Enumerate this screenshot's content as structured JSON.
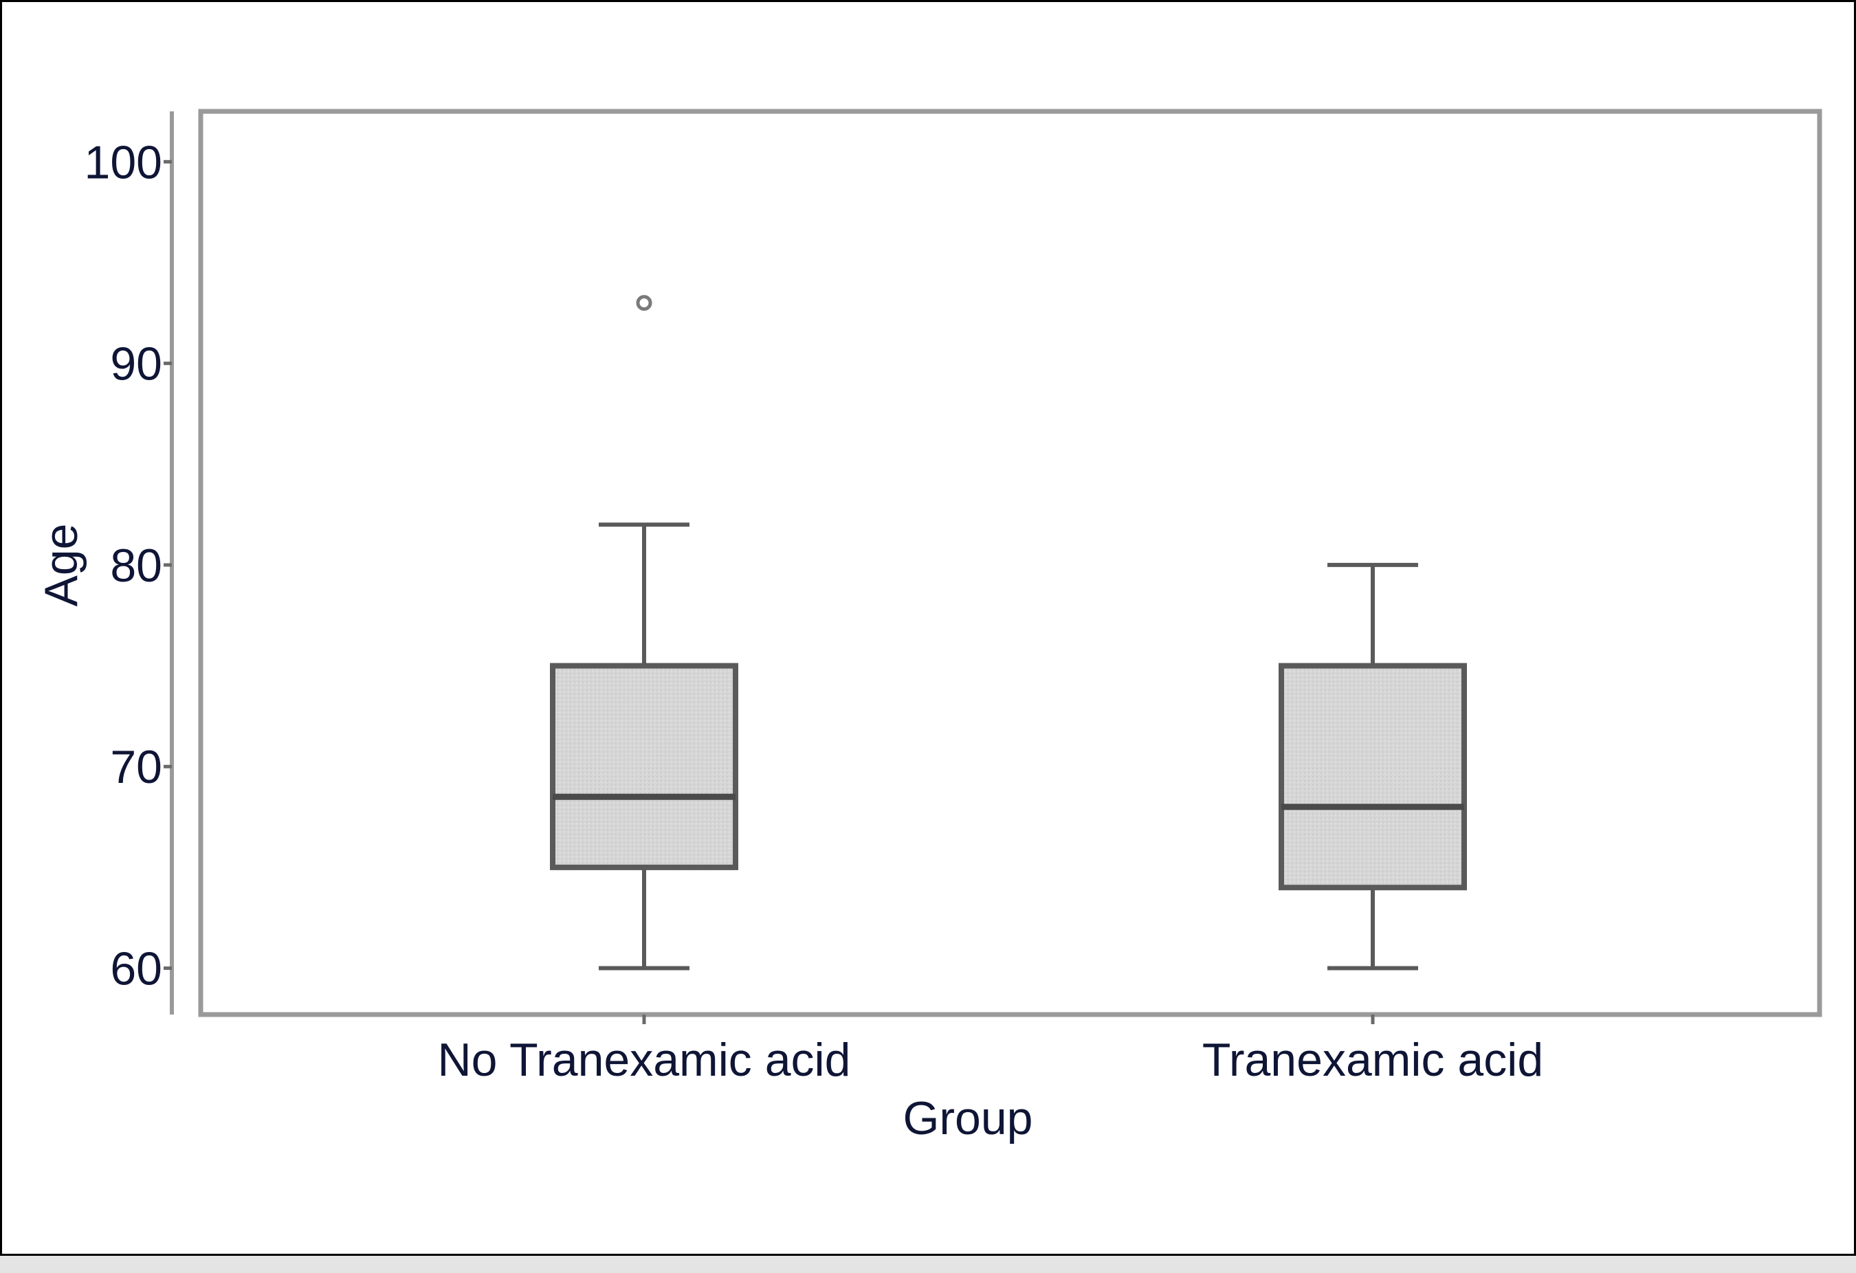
{
  "chart_data": {
    "type": "box",
    "xlabel": "Group",
    "ylabel": "Age",
    "ylim": [
      57.7,
      102.5
    ],
    "yticks": [
      60,
      70,
      80,
      90,
      100
    ],
    "categories": [
      "No Tranexamic acid",
      "Tranexamic acid"
    ],
    "boxes": [
      {
        "category": "No Tranexamic acid",
        "whisker_low": 60,
        "q1": 65,
        "median": 68.5,
        "q3": 75,
        "whisker_high": 82,
        "outliers": [
          93
        ]
      },
      {
        "category": "Tranexamic acid",
        "whisker_low": 60,
        "q1": 64,
        "median": 68,
        "q3": 75,
        "whisker_high": 80,
        "outliers": []
      }
    ],
    "grid": false,
    "legend": "none",
    "colors": {
      "box_fill": "#d6d6d6",
      "box_stroke": "#5a5a5a",
      "plot_border": "#9a9a9a",
      "text": "#0f1535"
    }
  }
}
